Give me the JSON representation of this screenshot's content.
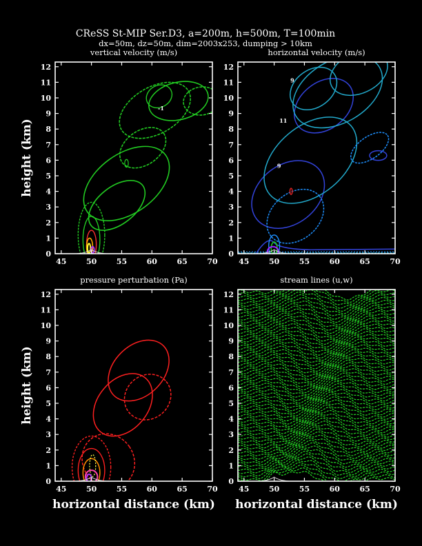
{
  "figure": {
    "title": "CReSS St-MIP Ser.D3, a=200m, h=500m, T=100min",
    "subtitle": "dx=50m, dz=50m, dim=2003x253, dumping > 10km",
    "background": "#000000",
    "foreground": "#ffffff"
  },
  "chart_data": [
    {
      "type": "contour",
      "title": "vertical velocity (m/s)",
      "xlabel": "",
      "ylabel": "height (km)",
      "xlim": [
        44,
        70
      ],
      "ylim": [
        0,
        12.3
      ],
      "xticks": [
        45,
        50,
        55,
        60,
        65,
        70
      ],
      "yticks": [
        0,
        1,
        2,
        3,
        4,
        5,
        6,
        7,
        8,
        9,
        10,
        11,
        12
      ],
      "mountain_center_km": 50,
      "colors": [
        "#22cc22",
        "#ff3030",
        "#ffaa00",
        "#ffff33",
        "#aa33ff"
      ],
      "contour_labels": [
        {
          "text": "-1",
          "x": 61.5,
          "y": 9.2
        }
      ]
    },
    {
      "type": "contour",
      "title": "horizontal velocity (m/s)",
      "xlabel": "",
      "ylabel": "",
      "xlim": [
        44,
        70
      ],
      "ylim": [
        0,
        12.3
      ],
      "xticks": [
        45,
        50,
        55,
        60,
        65,
        70
      ],
      "yticks": [
        0,
        1,
        2,
        3,
        4,
        5,
        6,
        7,
        8,
        9,
        10,
        11,
        12
      ],
      "mountain_center_km": 50,
      "colors": [
        "#1e90ff",
        "#3344dd",
        "#22aacc",
        "#9922ff",
        "#22cc22"
      ],
      "contour_labels": [
        {
          "text": "9",
          "x": 53,
          "y": 11
        },
        {
          "text": "11",
          "x": 51.5,
          "y": 8.4
        },
        {
          "text": "9",
          "x": 50.8,
          "y": 5.5
        }
      ]
    },
    {
      "type": "contour",
      "title": "pressure perturbation (Pa)",
      "xlabel": "horizontal distance (km)",
      "ylabel": "height (km)",
      "xlim": [
        44,
        70
      ],
      "ylim": [
        0,
        12.3
      ],
      "xticks": [
        45,
        50,
        55,
        60,
        65,
        70
      ],
      "yticks": [
        0,
        1,
        2,
        3,
        4,
        5,
        6,
        7,
        8,
        9,
        10,
        11,
        12
      ],
      "mountain_center_km": 50,
      "colors": [
        "#ff2020",
        "#ff8800",
        "#ffff44",
        "#ff44aa",
        "#aa33ff"
      ],
      "contour_labels": []
    },
    {
      "type": "streamlines",
      "title": "stream lines (u,w)",
      "xlabel": "horizontal distance (km)",
      "ylabel": "",
      "xlim": [
        44,
        70
      ],
      "ylim": [
        0,
        12.3
      ],
      "xticks": [
        45,
        50,
        55,
        60,
        65,
        70
      ],
      "yticks": [
        0,
        1,
        2,
        3,
        4,
        5,
        6,
        7,
        8,
        9,
        10,
        11,
        12
      ],
      "mountain_center_km": 50,
      "colors": [
        "#22cc22"
      ],
      "contour_labels": []
    }
  ]
}
